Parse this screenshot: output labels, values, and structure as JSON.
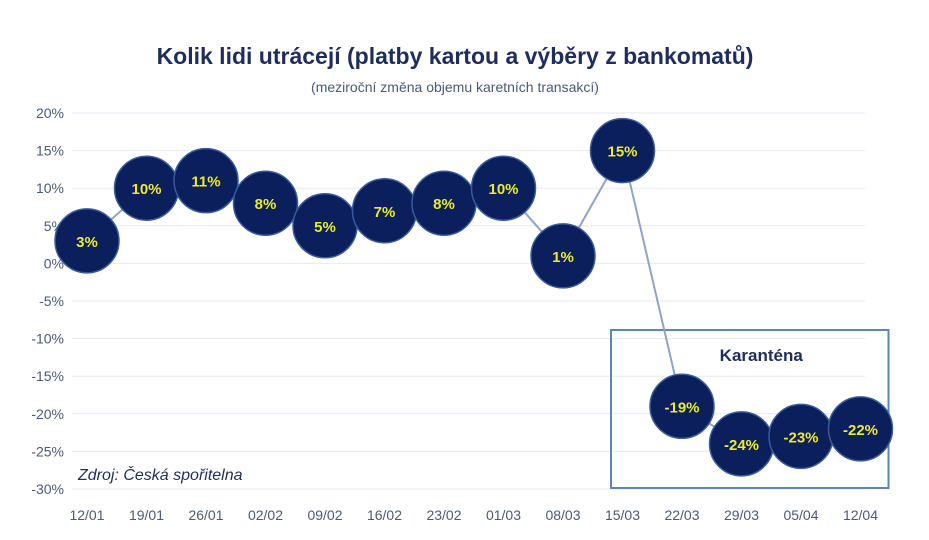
{
  "chart_data": {
    "type": "line",
    "title": "Kolik lidi utrácejí (platby kartou a výběry z bankomatů)",
    "subtitle": "(meziroční změna objemu karetních transakcí)",
    "xlabel": "",
    "ylabel": "",
    "categories": [
      "12/01",
      "19/01",
      "26/01",
      "02/02",
      "09/02",
      "16/02",
      "23/02",
      "01/03",
      "08/03",
      "15/03",
      "22/03",
      "29/03",
      "05/04",
      "12/04"
    ],
    "values": [
      3,
      10,
      11,
      8,
      5,
      7,
      8,
      10,
      1,
      15,
      -19,
      -24,
      -23,
      -22
    ],
    "data_labels": [
      "3%",
      "10%",
      "11%",
      "8%",
      "5%",
      "7%",
      "8%",
      "10%",
      "1%",
      "15%",
      "-19%",
      "-24%",
      "-23%",
      "-22%"
    ],
    "ylim": [
      -30,
      20
    ],
    "yticks": [
      20,
      15,
      10,
      5,
      0,
      -5,
      -10,
      -15,
      -20,
      -25,
      -30
    ],
    "ytick_labels": [
      "20%",
      "15%",
      "10%",
      "5%",
      "0%",
      "-5%",
      "-10%",
      "-15%",
      "-20%",
      "-25%",
      "-30%"
    ],
    "grid": true,
    "annotation": {
      "label": "Karanténa",
      "from": "22/03",
      "to": "12/04"
    },
    "source": "Zdroj: Česká spořitelna",
    "colors": {
      "marker": "#0a1f5c",
      "label": "#ecec2a",
      "line": "#8fa3c8",
      "text": "#1f2d5c",
      "box": "#5b86b8"
    }
  }
}
